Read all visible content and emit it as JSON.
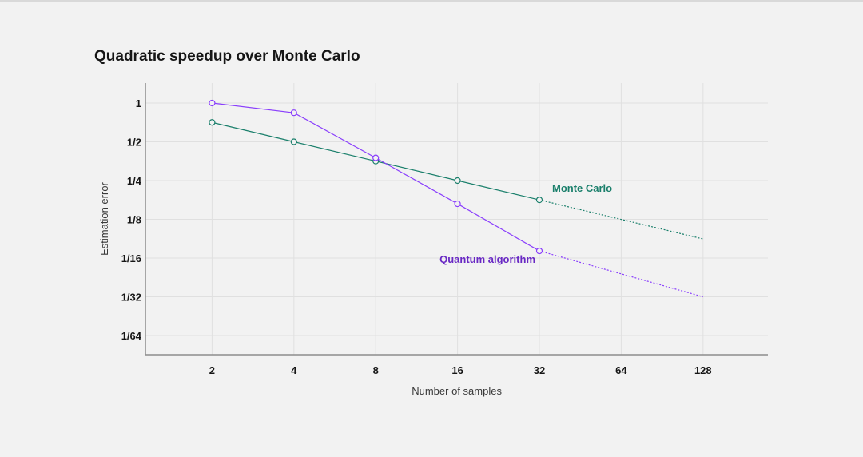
{
  "chart_data": {
    "type": "line",
    "title": "Quadratic speedup over Monte Carlo",
    "xlabel": "Number of samples",
    "ylabel": "Estimation error",
    "x_scale": "log2",
    "y_scale": "log2",
    "xlim": [
      1,
      256
    ],
    "ylim": [
      0.0078125,
      2
    ],
    "grid": true,
    "x_ticks": [
      {
        "value": 2,
        "label": "2"
      },
      {
        "value": 4,
        "label": "4"
      },
      {
        "value": 8,
        "label": "8"
      },
      {
        "value": 16,
        "label": "16"
      },
      {
        "value": 32,
        "label": "32"
      },
      {
        "value": 64,
        "label": "64"
      },
      {
        "value": 128,
        "label": "128"
      }
    ],
    "y_ticks": [
      {
        "value": 1,
        "label": "1"
      },
      {
        "value": 0.5,
        "label": "1/2"
      },
      {
        "value": 0.25,
        "label": "1/4"
      },
      {
        "value": 0.125,
        "label": "1/8"
      },
      {
        "value": 0.0625,
        "label": "1/16"
      },
      {
        "value": 0.03125,
        "label": "1/32"
      },
      {
        "value": 0.015625,
        "label": "1/64"
      }
    ],
    "series": [
      {
        "name": "Monte Carlo",
        "color": "#1a7f6b",
        "x": [
          2,
          4,
          8,
          16,
          32
        ],
        "y": [
          0.707,
          0.5,
          0.354,
          0.25,
          0.177
        ],
        "extrapolation": {
          "x": [
            32,
            128
          ],
          "y": [
            0.177,
            0.088
          ]
        }
      },
      {
        "name": "Quantum algorithm",
        "color": "#8a3ffc",
        "label_color": "#6929c4",
        "x": [
          2,
          4,
          8,
          16,
          32
        ],
        "y": [
          1.0,
          0.84,
          0.375,
          0.165,
          0.071
        ],
        "extrapolation": {
          "x": [
            32,
            128
          ],
          "y": [
            0.071,
            0.03125
          ]
        }
      }
    ]
  }
}
